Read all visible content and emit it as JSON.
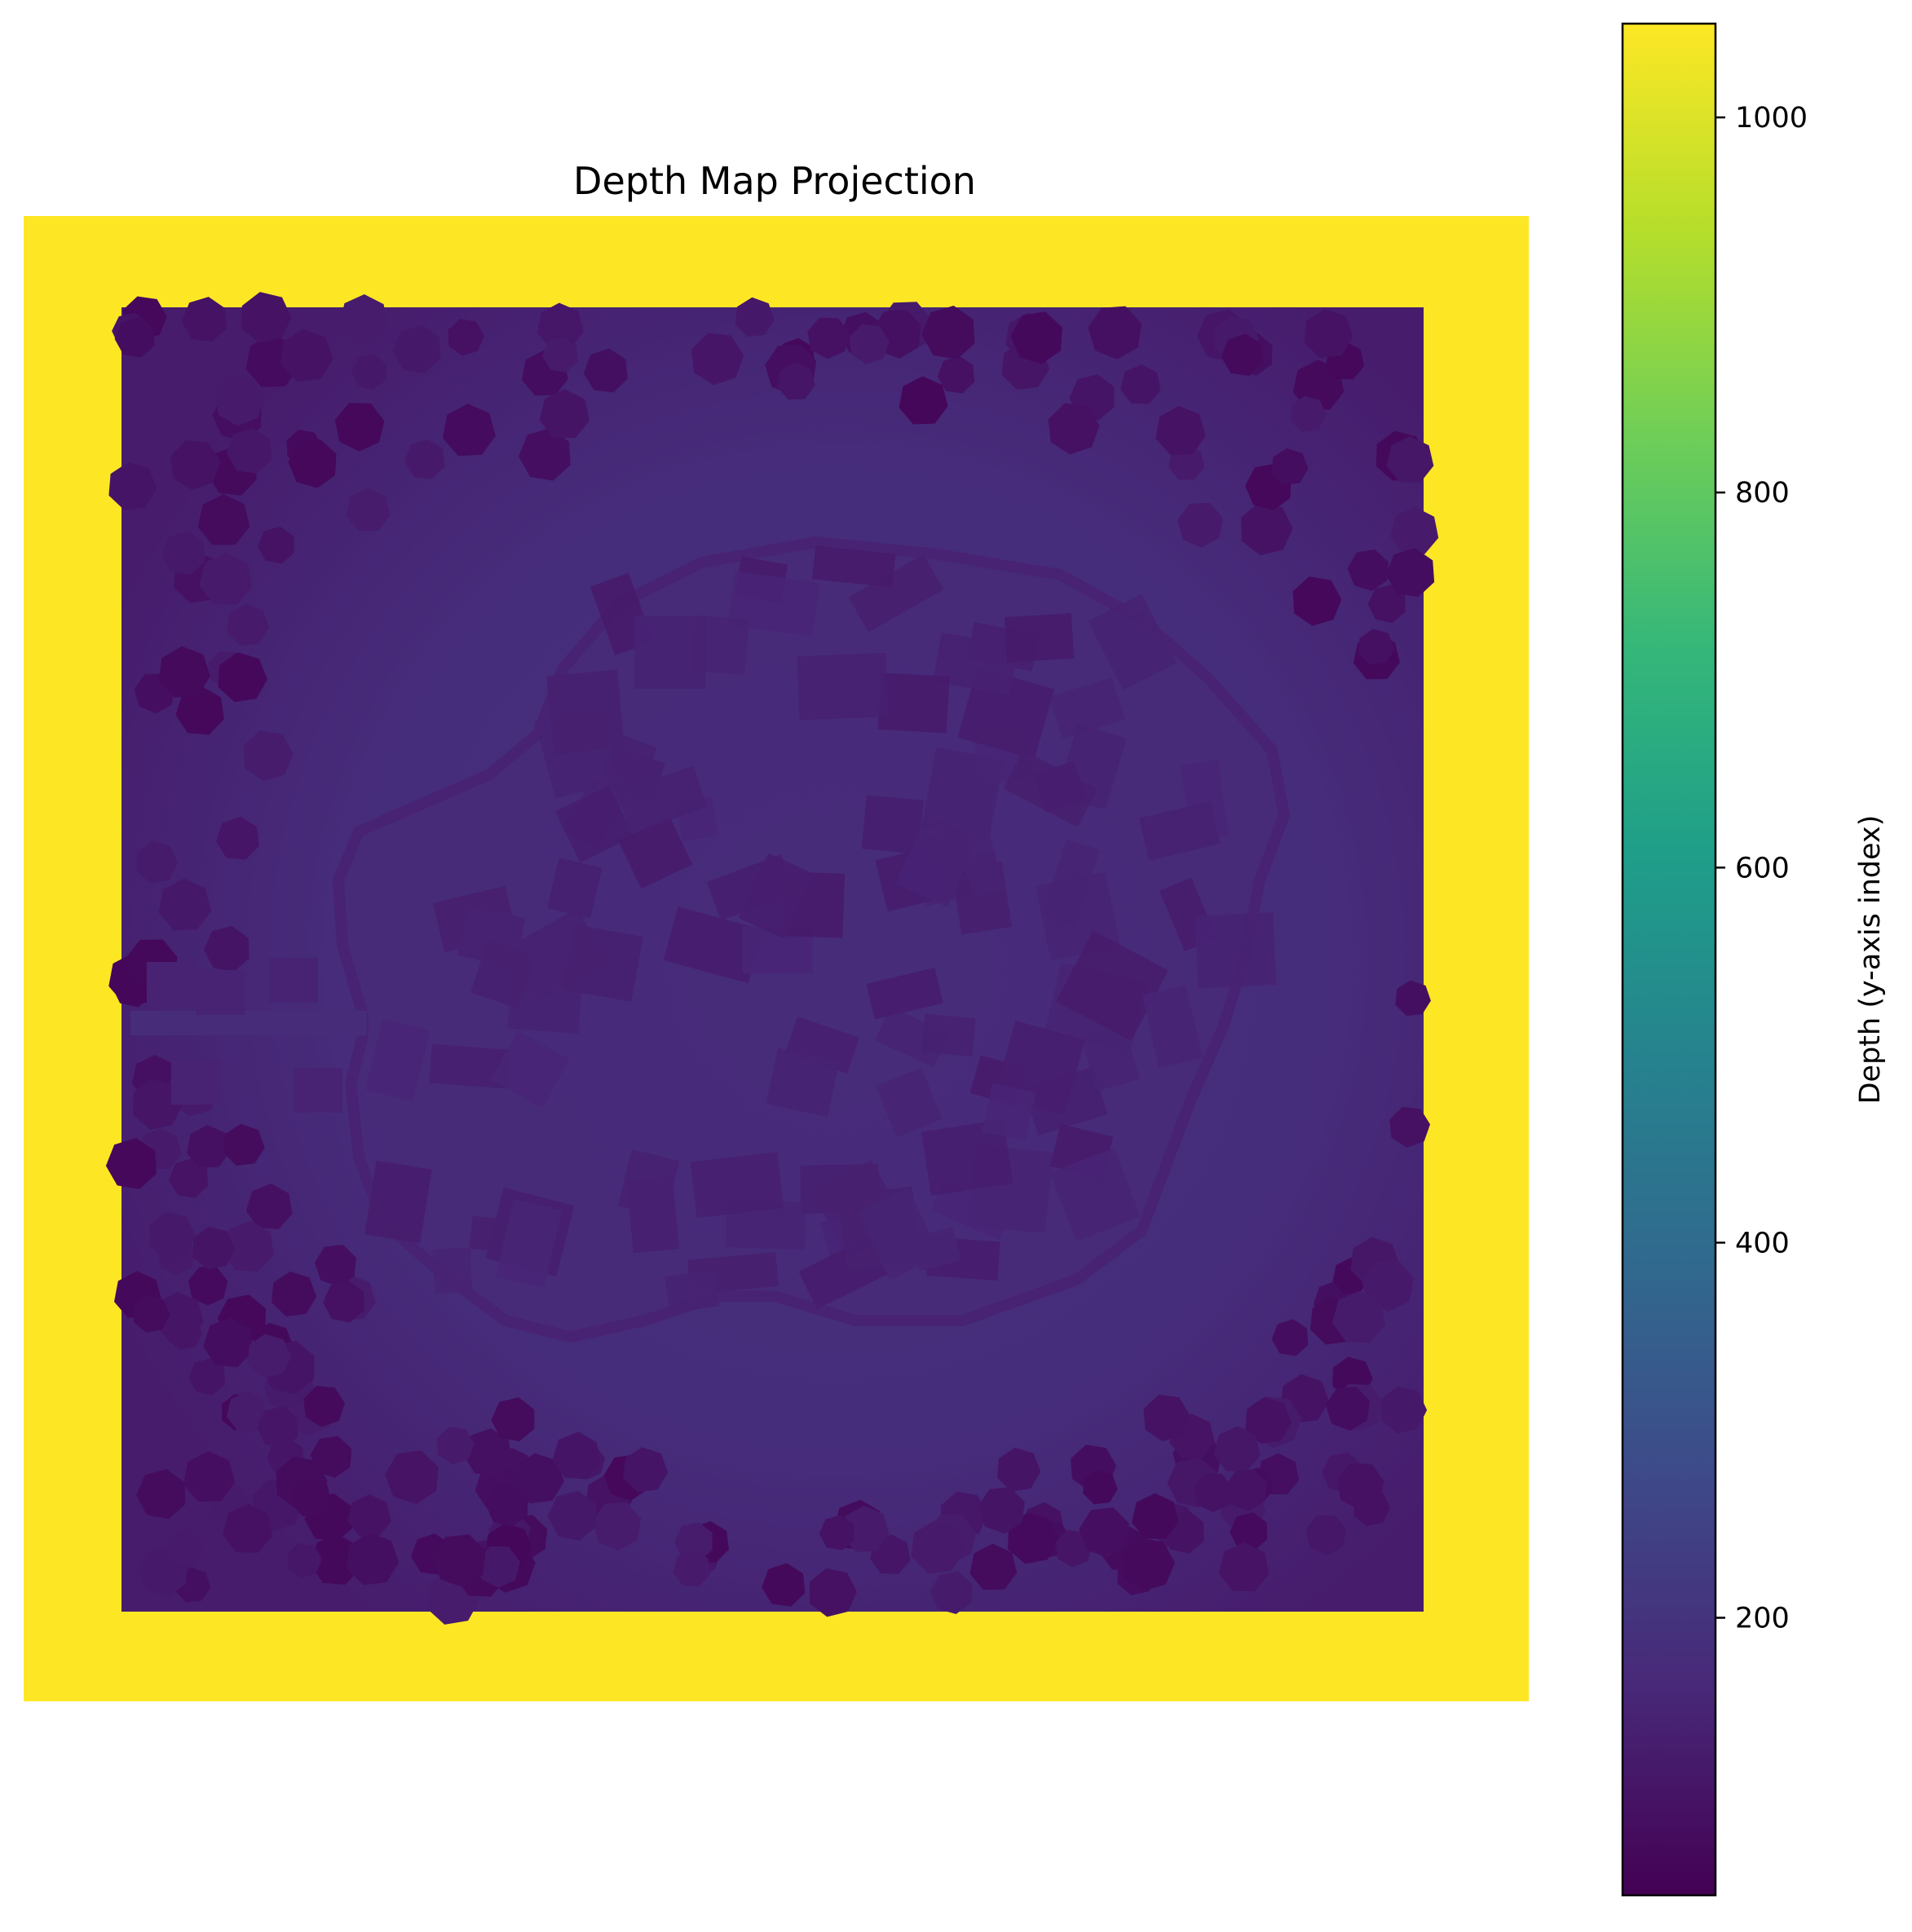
{
  "chart_data": {
    "type": "heatmap",
    "title": "Depth Map Projection",
    "axes_visible": false,
    "colormap": "viridis",
    "colormap_stops": [
      "#440154",
      "#482878",
      "#3e4989",
      "#31688e",
      "#26828e",
      "#1f9e89",
      "#35b779",
      "#6ece58",
      "#b5de2b",
      "#fde725"
    ],
    "background_value": 1050,
    "region": {
      "description_values": {
        "terrain_base_depth": 180,
        "terrain_edge_depth": 130,
        "island_shoreline_depth": 150,
        "building_depth": 140,
        "tree_depth_min": 70,
        "tree_depth_max": 130
      }
    },
    "colorbar": {
      "label": "Depth (y-axis index)",
      "min": 52,
      "max": 1050,
      "ticks": [
        200,
        400,
        600,
        800,
        1000
      ],
      "tick_labels": [
        "200",
        "400",
        "600",
        "800",
        "1000"
      ]
    }
  }
}
